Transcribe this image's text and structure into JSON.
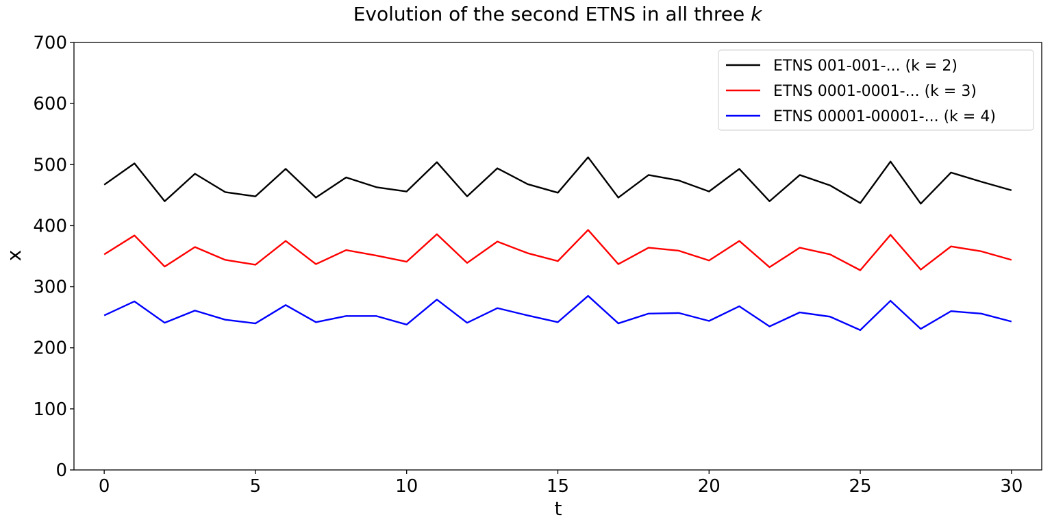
{
  "chart_data": {
    "type": "line",
    "title": "Evolution of the second ETNS in all three ",
    "title_italic": "k",
    "xlabel": "t",
    "ylabel": "x",
    "xlim": [
      -1,
      31
    ],
    "ylim": [
      0,
      700
    ],
    "xticks": [
      0,
      5,
      10,
      15,
      20,
      25,
      30
    ],
    "yticks": [
      0,
      100,
      200,
      300,
      400,
      500,
      600,
      700
    ],
    "grid": false,
    "legend_position": "top-right",
    "x": [
      0,
      1,
      2,
      3,
      4,
      5,
      6,
      7,
      8,
      9,
      10,
      11,
      12,
      13,
      14,
      15,
      16,
      17,
      18,
      19,
      20,
      21,
      22,
      23,
      24,
      25,
      26,
      27,
      28,
      29,
      30
    ],
    "series": [
      {
        "name": "ETNS 001-001-... (k = 2)",
        "color": "#000000",
        "values": [
          467,
          502,
          440,
          485,
          455,
          448,
          493,
          446,
          479,
          463,
          456,
          504,
          448,
          494,
          468,
          454,
          512,
          446,
          483,
          474,
          456,
          493,
          440,
          483,
          466,
          437,
          505,
          436,
          487,
          472,
          458
        ]
      },
      {
        "name": "ETNS 0001-0001-... (k = 3)",
        "color": "#ff0000",
        "values": [
          353,
          384,
          333,
          365,
          344,
          336,
          375,
          337,
          360,
          351,
          341,
          386,
          339,
          374,
          355,
          342,
          393,
          337,
          364,
          359,
          343,
          375,
          332,
          364,
          353,
          327,
          385,
          328,
          366,
          358,
          344
        ]
      },
      {
        "name": "ETNS 00001-00001-... (k = 4)",
        "color": "#0000ff",
        "values": [
          253,
          276,
          241,
          261,
          246,
          240,
          270,
          242,
          252,
          252,
          238,
          279,
          241,
          265,
          253,
          242,
          285,
          240,
          256,
          257,
          244,
          268,
          235,
          258,
          251,
          229,
          277,
          231,
          260,
          256,
          243
        ]
      }
    ]
  }
}
